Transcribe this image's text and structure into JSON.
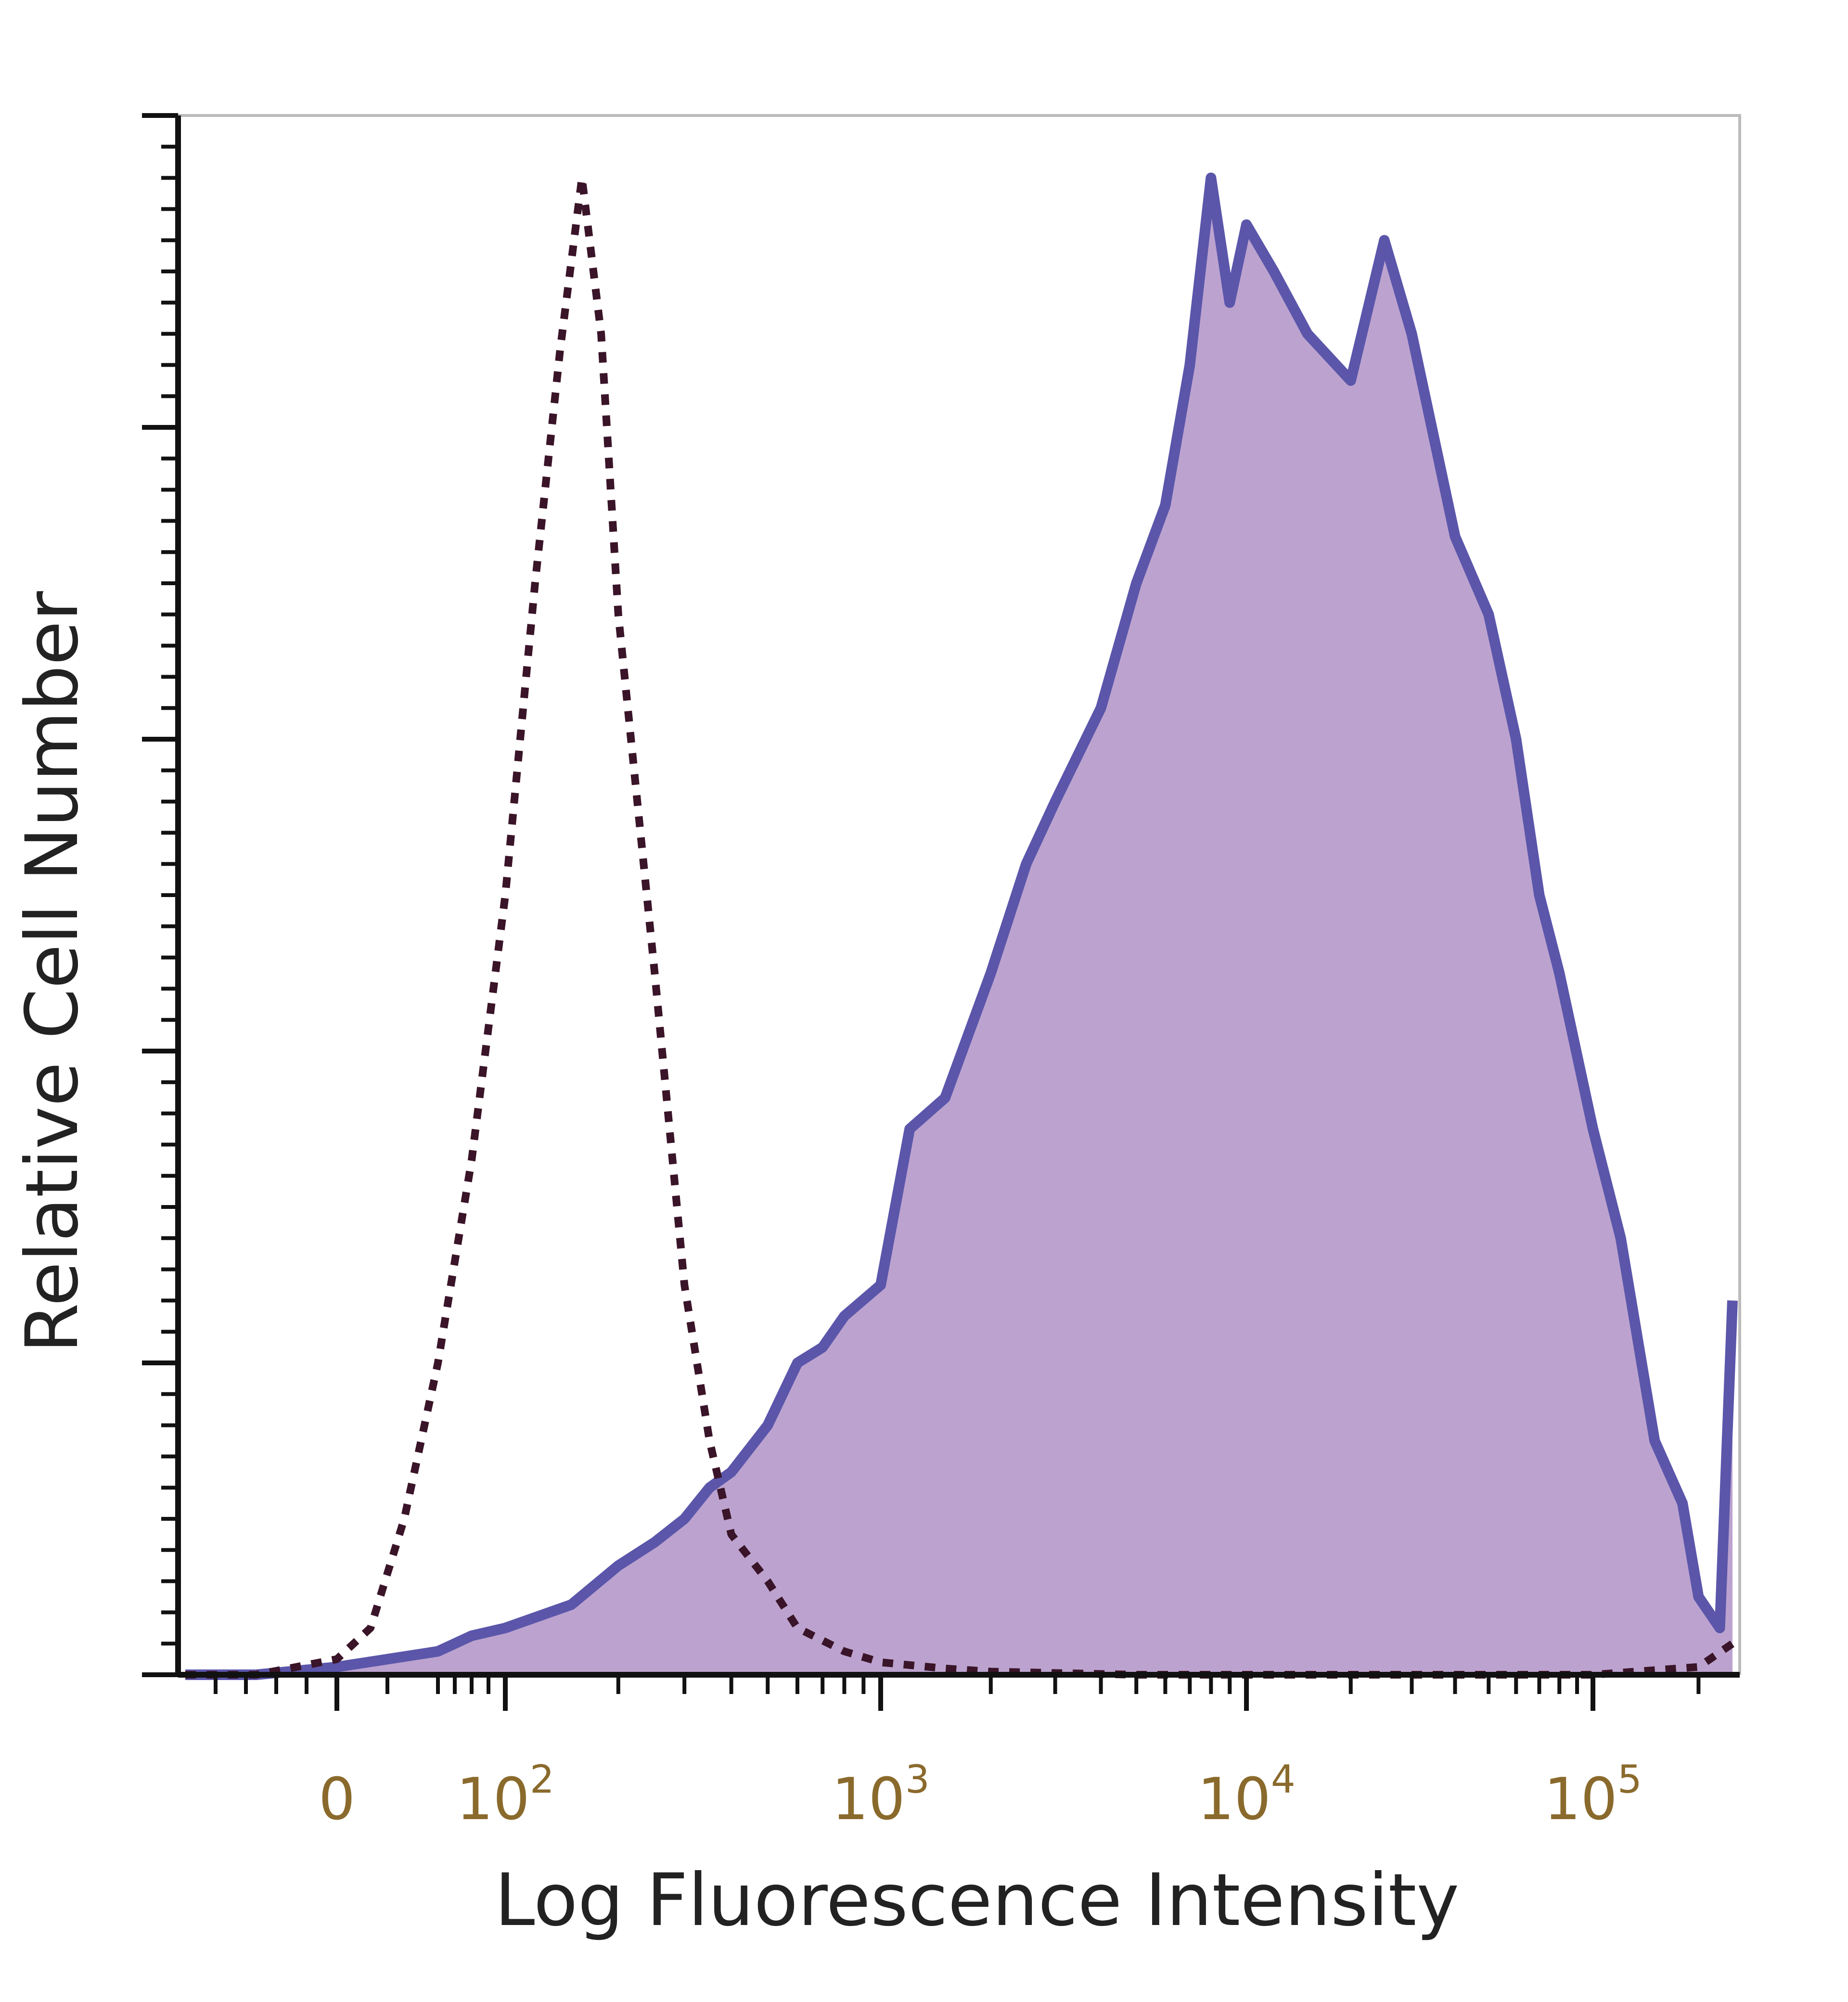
{
  "chart_data": {
    "type": "area",
    "title": "",
    "xlabel": "Log Fluorescence Intensity",
    "ylabel": "Relative Cell Number",
    "x_scale": "biexponential",
    "xlim": [
      -150,
      250000
    ],
    "ylim": [
      0,
      100
    ],
    "grid": false,
    "legend": "none",
    "x_ticks": [
      {
        "value": 0,
        "label": "0"
      },
      {
        "value": 100,
        "label": "10",
        "exp": "2"
      },
      {
        "value": 1000,
        "label": "10",
        "exp": "3"
      },
      {
        "value": 10000,
        "label": "10",
        "exp": "4"
      },
      {
        "value": 100000,
        "label": "10",
        "exp": "5"
      }
    ],
    "y_ticks": [
      0,
      20,
      40,
      60,
      80,
      100
    ],
    "colors": {
      "stained_line": "#5b56aa",
      "stained_fill": "#bca3cf",
      "control_line": "#3a1428",
      "axis": "#111111",
      "tick_label": "#8a6a2c",
      "frame": "#bbbbbb"
    },
    "series": [
      {
        "style": "filled-solid",
        "x": [
          -150,
          -80,
          0,
          30,
          60,
          80,
          100,
          150,
          200,
          250,
          300,
          350,
          400,
          500,
          600,
          700,
          800,
          1000,
          1200,
          1500,
          2000,
          2500,
          3000,
          4000,
          5000,
          6000,
          7000,
          8000,
          9000,
          10000,
          12000,
          15000,
          20000,
          25000,
          30000,
          40000,
          50000,
          60000,
          70000,
          80000,
          100000,
          120000,
          150000,
          180000,
          200000,
          230000,
          250000
        ],
        "y": [
          0,
          0,
          0.5,
          1,
          1.5,
          2.5,
          3,
          4.5,
          7,
          8.5,
          10,
          12,
          13,
          16,
          20,
          21,
          23,
          25,
          35,
          37,
          45,
          52,
          56,
          62,
          70,
          75,
          84,
          96,
          88,
          93,
          90,
          86,
          83,
          92,
          86,
          73,
          68,
          60,
          50,
          45,
          35,
          28,
          15,
          11,
          5,
          3,
          24
        ]
      },
      {
        "style": "dashed",
        "x": [
          -150,
          -80,
          0,
          20,
          40,
          60,
          80,
          100,
          120,
          140,
          160,
          180,
          200,
          250,
          300,
          350,
          400,
          500,
          600,
          800,
          1000,
          1500,
          2000,
          5000,
          10000,
          50000,
          100000,
          200000,
          250000
        ],
        "y": [
          0,
          0,
          1,
          3,
          10,
          20,
          33,
          50,
          70,
          85,
          96,
          86,
          68,
          45,
          25,
          15,
          9,
          6,
          3,
          1.5,
          0.8,
          0.4,
          0.2,
          0,
          0,
          0,
          0,
          0.5,
          2
        ]
      }
    ]
  }
}
